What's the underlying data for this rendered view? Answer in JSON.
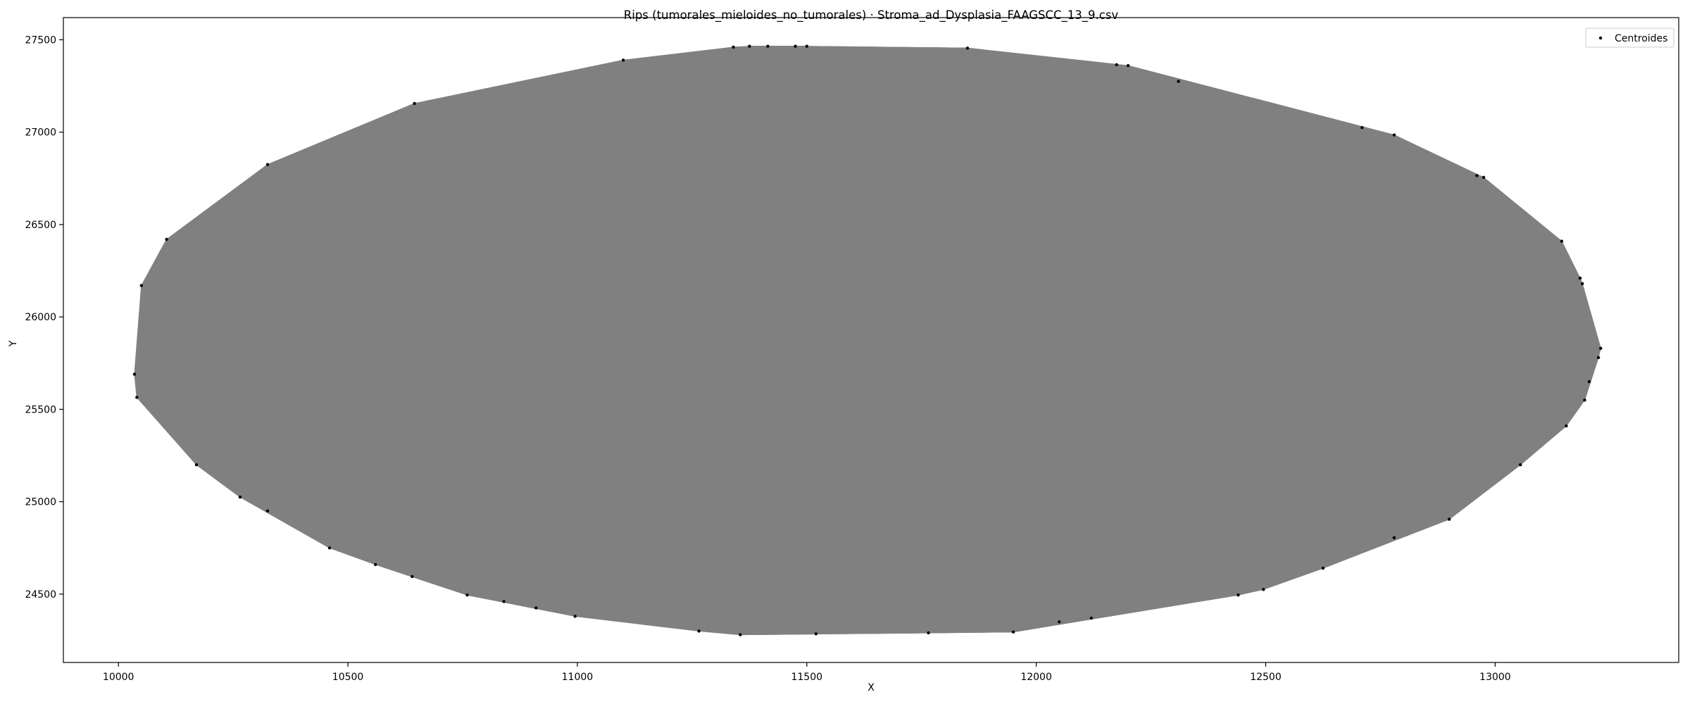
{
  "chart_data": {
    "type": "scatter",
    "title": "Rips (tumorales_mieloides_no_tumorales) · Stroma_ad_Dysplasia_FAAGSCC_13_9.csv",
    "xlabel": "X",
    "ylabel": "Y",
    "xlim": [
      9880,
      13400
    ],
    "ylim": [
      24130,
      27620
    ],
    "xticks": [
      10000,
      10500,
      11000,
      11500,
      12000,
      12500,
      13000
    ],
    "yticks": [
      24500,
      25000,
      25500,
      26000,
      26500,
      27000,
      27500
    ],
    "grid": false,
    "legend": {
      "position": "top-right",
      "entries": [
        "Centroides"
      ]
    },
    "colors": {
      "edges": "#808080",
      "points": "#000000",
      "axes": "#000000"
    },
    "series": [
      {
        "name": "Centroides",
        "points": [
          [
            10035,
            25690
          ],
          [
            10040,
            25565
          ],
          [
            10050,
            26170
          ],
          [
            10105,
            26420
          ],
          [
            10170,
            25200
          ],
          [
            10265,
            25025
          ],
          [
            10325,
            24950
          ],
          [
            10325,
            26825
          ],
          [
            10460,
            24750
          ],
          [
            10560,
            24660
          ],
          [
            10640,
            24595
          ],
          [
            10645,
            27155
          ],
          [
            10760,
            24495
          ],
          [
            10840,
            24460
          ],
          [
            10910,
            24425
          ],
          [
            10995,
            24380
          ],
          [
            11100,
            27390
          ],
          [
            11265,
            24300
          ],
          [
            11340,
            27460
          ],
          [
            11355,
            24280
          ],
          [
            11375,
            27465
          ],
          [
            11415,
            27465
          ],
          [
            11475,
            27465
          ],
          [
            11500,
            27465
          ],
          [
            11520,
            24285
          ],
          [
            11765,
            24290
          ],
          [
            11850,
            27455
          ],
          [
            11950,
            24295
          ],
          [
            12050,
            24350
          ],
          [
            12120,
            24370
          ],
          [
            12175,
            27365
          ],
          [
            12200,
            27360
          ],
          [
            12310,
            27275
          ],
          [
            12440,
            24495
          ],
          [
            12495,
            24525
          ],
          [
            12625,
            24640
          ],
          [
            12710,
            27025
          ],
          [
            12780,
            24805
          ],
          [
            12780,
            26985
          ],
          [
            12900,
            24905
          ],
          [
            12960,
            26765
          ],
          [
            12975,
            26755
          ],
          [
            13055,
            25200
          ],
          [
            13145,
            26410
          ],
          [
            13155,
            25410
          ],
          [
            13185,
            26210
          ],
          [
            13190,
            26180
          ],
          [
            13195,
            25550
          ],
          [
            13205,
            25650
          ],
          [
            13225,
            25780
          ],
          [
            13230,
            25830
          ]
        ]
      }
    ]
  }
}
